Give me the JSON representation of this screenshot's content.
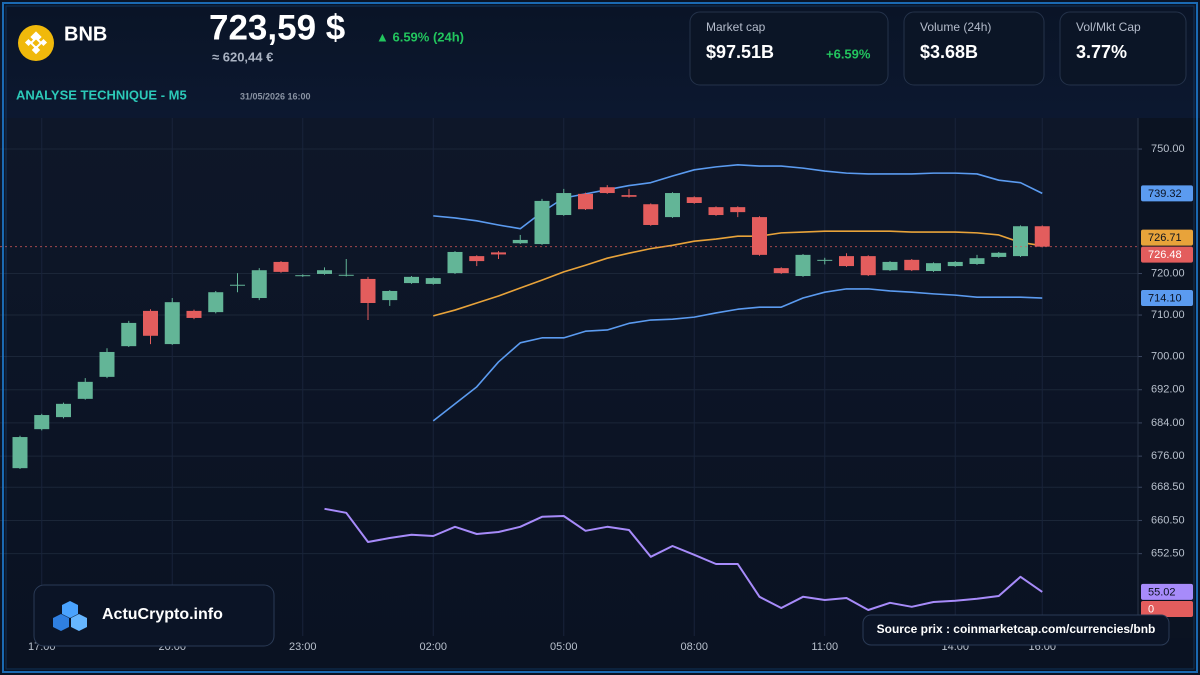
{
  "header": {
    "symbol": "BNB",
    "price": "723,59 $",
    "price_eur": "≈ 620,44 €",
    "change": "▲ 6.59% (24h)",
    "section": "ANALYSE TECHNIQUE - M5",
    "timestamp": "31/05/2026 16:00"
  },
  "cards": [
    {
      "label": "Market cap",
      "value": "$97.51B",
      "change": "+6.59%"
    },
    {
      "label": "Volume (24h)",
      "value": "$3.68B"
    },
    {
      "label": "Vol/Mkt Cap",
      "value": "3.77%"
    }
  ],
  "footer": {
    "brand": "ActuCrypto.info",
    "source": "Source prix : coinmarketcap.com/currencies/bnb"
  },
  "chart_data": {
    "type": "candlestick",
    "categories": [
      null,
      "17:00",
      null,
      null,
      null,
      null,
      null,
      "20:00",
      null,
      null,
      null,
      null,
      null,
      "23:00",
      null,
      null,
      null,
      null,
      null,
      "02:00",
      null,
      null,
      null,
      null,
      null,
      "05:00",
      null,
      null,
      null,
      null,
      null,
      "08:00",
      null,
      null,
      null,
      null,
      null,
      "11:00",
      null,
      null,
      null,
      null,
      null,
      "14:00",
      null,
      null,
      null,
      "16:00"
    ],
    "open": [
      673.1,
      682.5,
      685.4,
      689.8,
      695.1,
      702.5,
      711.0,
      703.0,
      711.0,
      710.7,
      717.2,
      714.1,
      722.8,
      719.5,
      719.9,
      719.6,
      718.7,
      713.6,
      717.7,
      717.5,
      720.1,
      724.2,
      725.1,
      727.3,
      727.1,
      734.1,
      739.2,
      740.8,
      738.9,
      736.7,
      733.6,
      738.4,
      736.0,
      736.0,
      733.6,
      721.3,
      719.4,
      723.2,
      724.2,
      724.2,
      720.8,
      723.3,
      720.6,
      721.8,
      722.3,
      724.0,
      724.2,
      731.4
    ],
    "high": [
      680.9,
      686.2,
      688.9,
      694.8,
      702.0,
      708.6,
      711.4,
      714.1,
      711.3,
      715.8,
      720.1,
      721.3,
      723.0,
      719.8,
      721.5,
      723.5,
      719.2,
      716.0,
      719.4,
      719.1,
      725.4,
      724.4,
      725.4,
      729.3,
      738.0,
      740.4,
      739.5,
      741.3,
      740.4,
      736.9,
      739.6,
      738.6,
      736.2,
      736.2,
      733.8,
      721.5,
      724.7,
      723.8,
      724.9,
      724.4,
      723.0,
      723.5,
      722.7,
      723.0,
      724.5,
      725.2,
      731.6,
      731.6
    ],
    "low": [
      672.9,
      682.2,
      685.1,
      689.6,
      694.8,
      702.3,
      703.0,
      702.8,
      709.0,
      710.4,
      715.5,
      713.6,
      720.2,
      719.2,
      719.7,
      719.3,
      708.8,
      712.2,
      717.5,
      717.3,
      719.9,
      721.8,
      723.5,
      727.1,
      726.9,
      733.9,
      735.3,
      739.2,
      738.3,
      731.5,
      733.4,
      736.8,
      733.9,
      733.6,
      724.3,
      719.9,
      719.2,
      722.2,
      721.6,
      719.4,
      720.6,
      720.6,
      720.4,
      721.6,
      722.1,
      723.8,
      724.0,
      726.3
    ],
    "close": [
      680.6,
      685.9,
      688.6,
      693.9,
      701.1,
      708.1,
      705.0,
      713.1,
      709.3,
      715.5,
      717.3,
      720.8,
      720.4,
      719.6,
      720.8,
      719.7,
      712.9,
      715.8,
      719.2,
      718.9,
      725.2,
      723.0,
      724.6,
      728.1,
      737.5,
      739.4,
      735.5,
      739.4,
      738.5,
      731.7,
      739.4,
      737.0,
      734.1,
      734.8,
      724.5,
      720.1,
      724.5,
      723.3,
      721.8,
      719.6,
      722.8,
      720.8,
      722.5,
      722.8,
      723.7,
      725.0,
      731.4,
      726.48
    ],
    "close_label": "726.48",
    "up_color": "#63b597",
    "down_color": "#e35d5d",
    "series": [
      {
        "color": "#5b9bf0",
        "last_label": "739.32",
        "values": [
          null,
          null,
          null,
          null,
          null,
          null,
          null,
          null,
          null,
          null,
          null,
          null,
          null,
          null,
          null,
          null,
          null,
          null,
          null,
          733.9,
          733.4,
          732.7,
          731.7,
          730.8,
          734.8,
          738.2,
          739.2,
          740.2,
          741.2,
          741.9,
          743.5,
          745.0,
          745.7,
          746.2,
          745.9,
          745.9,
          745.4,
          744.7,
          744.2,
          744.0,
          744.0,
          744.0,
          744.2,
          744.2,
          744.0,
          742.5,
          741.9,
          739.32
        ]
      },
      {
        "color": "#e8a33a",
        "last_label": "726.71",
        "values": [
          null,
          null,
          null,
          null,
          null,
          null,
          null,
          null,
          null,
          null,
          null,
          null,
          null,
          null,
          null,
          null,
          null,
          null,
          null,
          709.8,
          711.2,
          712.9,
          714.6,
          716.5,
          718.4,
          720.4,
          722.0,
          723.7,
          724.9,
          726.0,
          726.8,
          727.8,
          728.3,
          729.0,
          729.0,
          729.8,
          730.0,
          730.2,
          730.2,
          730.2,
          730.2,
          730.0,
          730.0,
          730.0,
          729.8,
          729.3,
          727.5,
          726.71
        ]
      },
      {
        "color": "#5b9bf0",
        "last_label": "714.10",
        "values": [
          null,
          null,
          null,
          null,
          null,
          null,
          null,
          null,
          null,
          null,
          null,
          null,
          null,
          null,
          null,
          null,
          null,
          null,
          null,
          684.5,
          688.6,
          692.7,
          698.7,
          703.3,
          704.5,
          704.5,
          706.1,
          706.4,
          708.0,
          708.8,
          709.0,
          709.5,
          710.5,
          711.4,
          711.9,
          711.9,
          714.1,
          715.5,
          716.3,
          716.3,
          715.8,
          715.5,
          715.1,
          714.8,
          714.3,
          714.3,
          714.3,
          714.1
        ]
      },
      {
        "color": "#a78bfa",
        "axis": "y2",
        "last_label": "55.02",
        "values": [
          null,
          null,
          null,
          null,
          null,
          null,
          null,
          null,
          null,
          null,
          null,
          null,
          null,
          null,
          75.8,
          74.8,
          67.5,
          68.5,
          69.3,
          69.0,
          71.3,
          69.5,
          70.0,
          71.3,
          73.8,
          74.0,
          70.3,
          71.3,
          70.5,
          63.8,
          66.5,
          64.3,
          62.0,
          62.0,
          53.8,
          51.0,
          53.8,
          53.0,
          53.5,
          50.5,
          52.3,
          51.3,
          52.5,
          52.8,
          53.3,
          54.0,
          58.8,
          55.02
        ]
      }
    ],
    "volume_last": 0,
    "ylim": [
      634.1,
      757.0
    ],
    "yticks": [
      {
        "value": 750,
        "label": "750.00"
      },
      {
        "value": 720,
        "label": "720.00"
      },
      {
        "value": 710,
        "label": "710.00"
      },
      {
        "value": 700,
        "label": "700.00"
      },
      {
        "value": 692,
        "label": "692.00"
      },
      {
        "value": 684,
        "label": "684.00"
      },
      {
        "value": 676,
        "label": "676.00"
      },
      {
        "value": 668.5,
        "label": "668.50"
      },
      {
        "value": 660.5,
        "label": "660.50"
      },
      {
        "value": 652.5,
        "label": "652.50"
      }
    ],
    "y2lim": [
      43.0,
      83.0
    ],
    "grid": true
  }
}
